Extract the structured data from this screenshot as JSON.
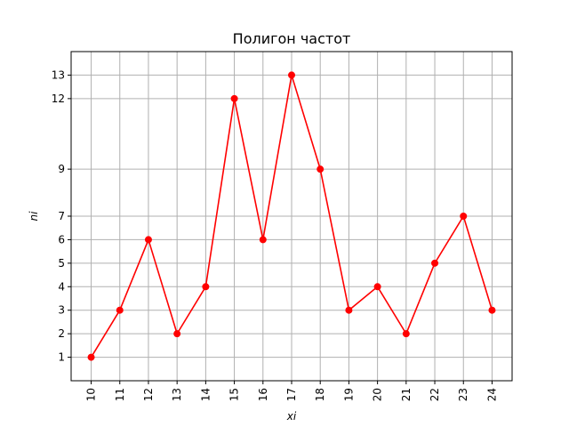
{
  "chart_data": {
    "type": "line",
    "title": "Полигон частот",
    "xlabel": "xi",
    "ylabel": "ni",
    "x": [
      10,
      11,
      12,
      13,
      14,
      15,
      16,
      17,
      18,
      19,
      20,
      21,
      22,
      23,
      24
    ],
    "series": [
      {
        "values": [
          1,
          3,
          6,
          2,
          4,
          12,
          6,
          13,
          9,
          3,
          4,
          2,
          5,
          7,
          3
        ]
      }
    ],
    "xticks": [
      "10",
      "11",
      "12",
      "13",
      "14",
      "15",
      "16",
      "17",
      "18",
      "19",
      "20",
      "21",
      "22",
      "23",
      "24"
    ],
    "yticks": [
      "1",
      "2",
      "3",
      "4",
      "5",
      "6",
      "7",
      "9",
      "12",
      "13"
    ],
    "xlim": [
      9.3,
      24.7
    ],
    "ylim": [
      0.0,
      14.0
    ],
    "grid": true,
    "marker": "circle",
    "line_color": "#ff0000",
    "grid_color": "#b0b0b0"
  }
}
